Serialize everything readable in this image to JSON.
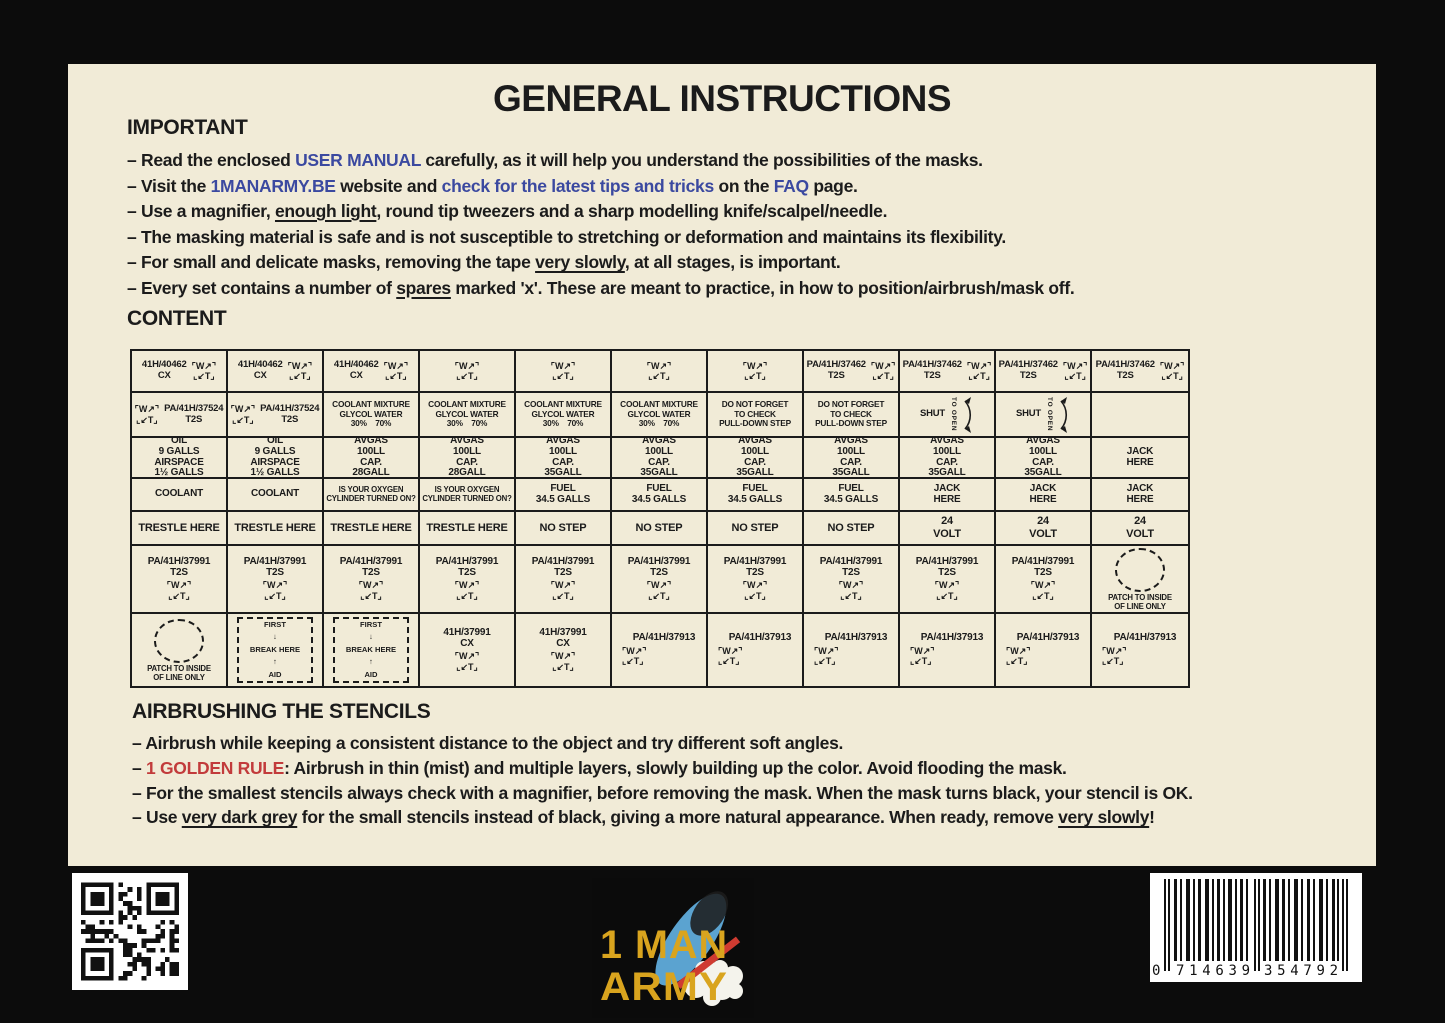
{
  "title": "GENERAL INSTRUCTIONS",
  "colors": {
    "page_bg": "#f1ebd7",
    "ink": "#1b1b1b",
    "link_blue": "#3b49a0",
    "accent_red": "#c23b3b",
    "logo_gold": "#d9a41e",
    "bomb_blue": "#5ba3d0"
  },
  "important": {
    "heading": "IMPORTANT",
    "items": [
      [
        {
          "t": "– Read the enclosed "
        },
        {
          "t": "USER MANUAL",
          "c": "blue"
        },
        {
          "t": " carefully, as it will help you understand the possibilities of the masks."
        }
      ],
      [
        {
          "t": "– Visit the "
        },
        {
          "t": "1MANARMY.BE",
          "c": "blue"
        },
        {
          "t": " website and "
        },
        {
          "t": "check for the latest tips and tricks",
          "c": "blue"
        },
        {
          "t": " on the "
        },
        {
          "t": "FAQ",
          "c": "blue"
        },
        {
          "t": " page."
        }
      ],
      [
        {
          "t": "– Use a magnifier, "
        },
        {
          "t": "enough light",
          "c": "u"
        },
        {
          "t": ", round tip tweezers and a sharp modelling knife/scalpel/needle."
        }
      ],
      [
        {
          "t": "– The masking material is safe and is not susceptible to stretching or deformation and maintains its flexibility."
        }
      ],
      [
        {
          "t": "– For small and delicate masks, removing the tape "
        },
        {
          "t": "very slowly",
          "c": "u"
        },
        {
          "t": ", at all stages, is important."
        }
      ],
      [
        {
          "t": "– Every set contains a number of "
        },
        {
          "t": "spares",
          "c": "u"
        },
        {
          "t": " marked 'x'. These are meant to practice, in how to position/airbrush/mask off."
        }
      ]
    ]
  },
  "content": {
    "heading": "CONTENT",
    "table": {
      "columns": 11,
      "rows": [
        [
          {
            "l": "ti",
            "t": [
              "41H/40462",
              "CX"
            ],
            "n": 3
          },
          {
            "l": "i",
            "n": 4
          },
          {
            "l": "ti",
            "t": [
              "PA/41H/37462",
              "T2S"
            ],
            "n": 4
          }
        ],
        [
          {
            "l": "it",
            "t": [
              "PA/41H/37524",
              "T2S"
            ],
            "n": 2
          },
          {
            "l": "t",
            "cls": "s",
            "t": [
              "COOLANT MIXTURE",
              "GLYCOL WATER",
              "30%    70%"
            ],
            "n": 4
          },
          {
            "l": "t",
            "cls": "s",
            "t": [
              "DO NOT FORGET",
              "TO CHECK",
              "PULL-DOWN STEP"
            ],
            "n": 2
          },
          {
            "l": "shut",
            "t": [
              "SHUT",
              "TO OPEN"
            ],
            "n": 2
          },
          {
            "l": "e",
            "n": 1
          }
        ],
        [
          {
            "l": "t",
            "cls": "m",
            "t": [
              "OIL",
              "9 GALLS",
              "AIRSPACE",
              "1½ GALLS"
            ],
            "n": 2
          },
          {
            "l": "t",
            "cls": "m",
            "t": [
              "AVGAS",
              "100LL",
              "CAP.",
              "28GALL"
            ],
            "n": 2
          },
          {
            "l": "t",
            "cls": "m",
            "t": [
              "AVGAS",
              "100LL",
              "CAP.",
              "35GALL"
            ],
            "n": 6
          },
          {
            "l": "t",
            "cls": "m",
            "t": [
              "JACK",
              "HERE"
            ],
            "n": 1
          }
        ],
        [
          {
            "l": "t",
            "cls": "m",
            "t": [
              "COOLANT"
            ],
            "n": 2
          },
          {
            "l": "t",
            "cls": "xs",
            "t": [
              "IS YOUR OXYGEN",
              "CYLINDER TURNED ON?"
            ],
            "n": 2
          },
          {
            "l": "t",
            "cls": "m",
            "t": [
              "FUEL",
              "34.5 GALLS"
            ],
            "n": 4
          },
          {
            "l": "t",
            "cls": "m",
            "t": [
              "JACK",
              "HERE"
            ],
            "n": 3
          }
        ],
        [
          {
            "l": "t",
            "cls": "l",
            "t": [
              "TRESTLE HERE"
            ],
            "n": 4
          },
          {
            "l": "t",
            "cls": "l",
            "t": [
              "NO STEP"
            ],
            "n": 4
          },
          {
            "l": "t",
            "cls": "l",
            "t": [
              "24",
              "VOLT"
            ],
            "n": 3
          }
        ],
        [
          {
            "l": "tib",
            "cls": "m",
            "t": [
              "PA/41H/37991",
              "T2S"
            ],
            "n": 10
          },
          {
            "l": "oval",
            "t": [
              "PATCH TO INSIDE",
              "OF LINE ONLY"
            ],
            "n": 1
          }
        ],
        [
          {
            "l": "oval",
            "t": [
              "PATCH TO INSIDE",
              "OF LINE ONLY"
            ],
            "n": 1
          },
          {
            "l": "aid",
            "t": [
              "FIRST",
              "↓",
              "BREAK HERE",
              "↑",
              "AID"
            ],
            "n": 2
          },
          {
            "l": "tib",
            "cls": "m",
            "t": [
              "41H/37991",
              "CX"
            ],
            "n": 2
          },
          {
            "l": "tibl",
            "cls": "m",
            "t": [
              "PA/41H/37913"
            ],
            "n": 6
          }
        ]
      ]
    }
  },
  "airbrushing": {
    "heading": "AIRBRUSHING THE STENCILS",
    "items": [
      [
        {
          "t": "– Airbrush while keeping a consistent distance to the object and try different soft angles."
        }
      ],
      [
        {
          "t": "– "
        },
        {
          "t": "1 GOLDEN RULE",
          "c": "red"
        },
        {
          "t": ": Airbrush in thin (mist) and multiple layers, slowly building up the color. Avoid flooding the mask."
        }
      ],
      [
        {
          "t": "– For the smallest stencils always check with a magnifier, before removing the mask. When the mask turns black, your stencil is OK."
        }
      ],
      [
        {
          "t": "– Use "
        },
        {
          "t": "very dark grey",
          "c": "u"
        },
        {
          "t": " for the small stencils instead of black, giving a more natural appearance. When ready, remove "
        },
        {
          "t": "very slowly",
          "c": "u"
        },
        {
          "t": "!"
        }
      ]
    ]
  },
  "icons": {
    "wt": [
      "⌜W↗⌝",
      "⌞↙T⌟"
    ],
    "shut_arrow": "double-headed-curved-arrow",
    "patch": "dashed-oval-patch",
    "first_aid": "dashed-break-here-box"
  },
  "footer": {
    "logo_text": [
      "1 MAN",
      "ARMY"
    ],
    "barcode_number": "0 714639 354792"
  }
}
